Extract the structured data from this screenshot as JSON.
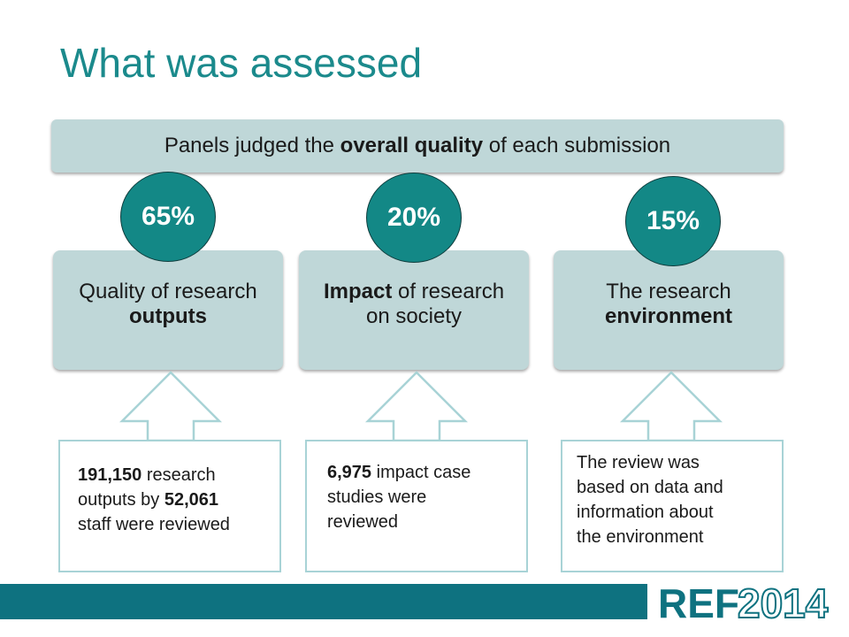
{
  "title": "What was assessed",
  "banner": {
    "text_before": "Panels judged the ",
    "text_bold": "overall quality",
    "text_after": " of each submission"
  },
  "categories": [
    {
      "percent": "65%",
      "line1_plain": "Quality of research",
      "line2_bold": "outputs",
      "info": {
        "line1_bold": "191,150",
        "line1_plain": " research",
        "line2_plain": "outputs by ",
        "line2_bold": "52,061",
        "line3_plain": "staff were reviewed"
      }
    },
    {
      "percent": "20%",
      "line1_bold": "Impact",
      "line1_plain": " of research",
      "line2_plain": "on society",
      "info": {
        "line1_bold": "6,975",
        "line1_plain": " impact case",
        "line2_plain": "studies were",
        "line3_plain": "reviewed"
      }
    },
    {
      "percent": "15%",
      "line1_plain": "The research",
      "line2_bold": "environment",
      "info": {
        "line1_plain": "The review was",
        "line2_plain": "based on data and",
        "line3_plain": "information about",
        "line4_plain": "the environment"
      }
    }
  ],
  "logo": {
    "text_bold": "REF",
    "text_outline": "2014",
    "color": "#0e7280"
  },
  "colors": {
    "title": "#1b8a8c",
    "panel_fill": "#bfd7d8",
    "circle_fill": "#138886",
    "arrow_stroke": "#a8d3d6",
    "footer": "#0e7280"
  }
}
